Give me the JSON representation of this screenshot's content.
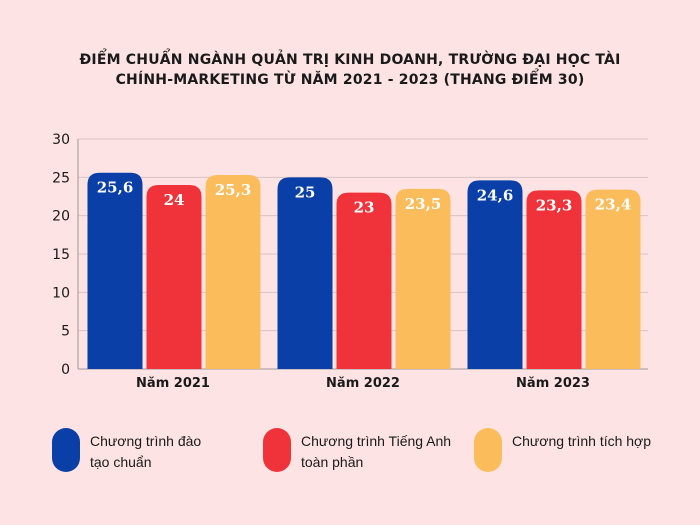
{
  "chart_data": {
    "type": "bar",
    "title_lines": [
      "ĐIỂM CHUẨN NGÀNH QUẢN TRỊ KINH DOANH, TRƯỜNG ĐẠI HỌC TÀI",
      "CHÍNH-MARKETING TỪ NĂM 2021 - 2023 (THANG ĐIỂM 30)"
    ],
    "categories": [
      "Năm 2021",
      "Năm 2022",
      "Năm 2023"
    ],
    "series": [
      {
        "name": "Chương trình đào tạo chuẩn",
        "values": [
          25.6,
          25,
          24.6
        ],
        "labels": [
          "25,6",
          "25",
          "24,6"
        ],
        "color": "#0a3fa8"
      },
      {
        "name": "Chương trình Tiếng Anh toàn phần",
        "values": [
          24,
          23,
          23.3
        ],
        "labels": [
          "24",
          "23",
          "23,3"
        ],
        "color": "#f0333a"
      },
      {
        "name": "Chương trình tích hợp",
        "values": [
          25.3,
          23.5,
          23.4
        ],
        "labels": [
          "25,3",
          "23,5",
          "23,4"
        ],
        "color": "#fbbc5c"
      }
    ],
    "legend_lines": [
      [
        "Chương  trình  đào",
        "tạo chuẩn"
      ],
      [
        "Chương trình Tiếng Anh",
        "toàn phần"
      ],
      [
        "Chương trình tích hợp"
      ]
    ],
    "yticks": [
      "0",
      "5",
      "10",
      "15",
      "20",
      "25",
      "30"
    ],
    "ylim": [
      0,
      30
    ],
    "grid": true,
    "legend_position": "bottom"
  }
}
